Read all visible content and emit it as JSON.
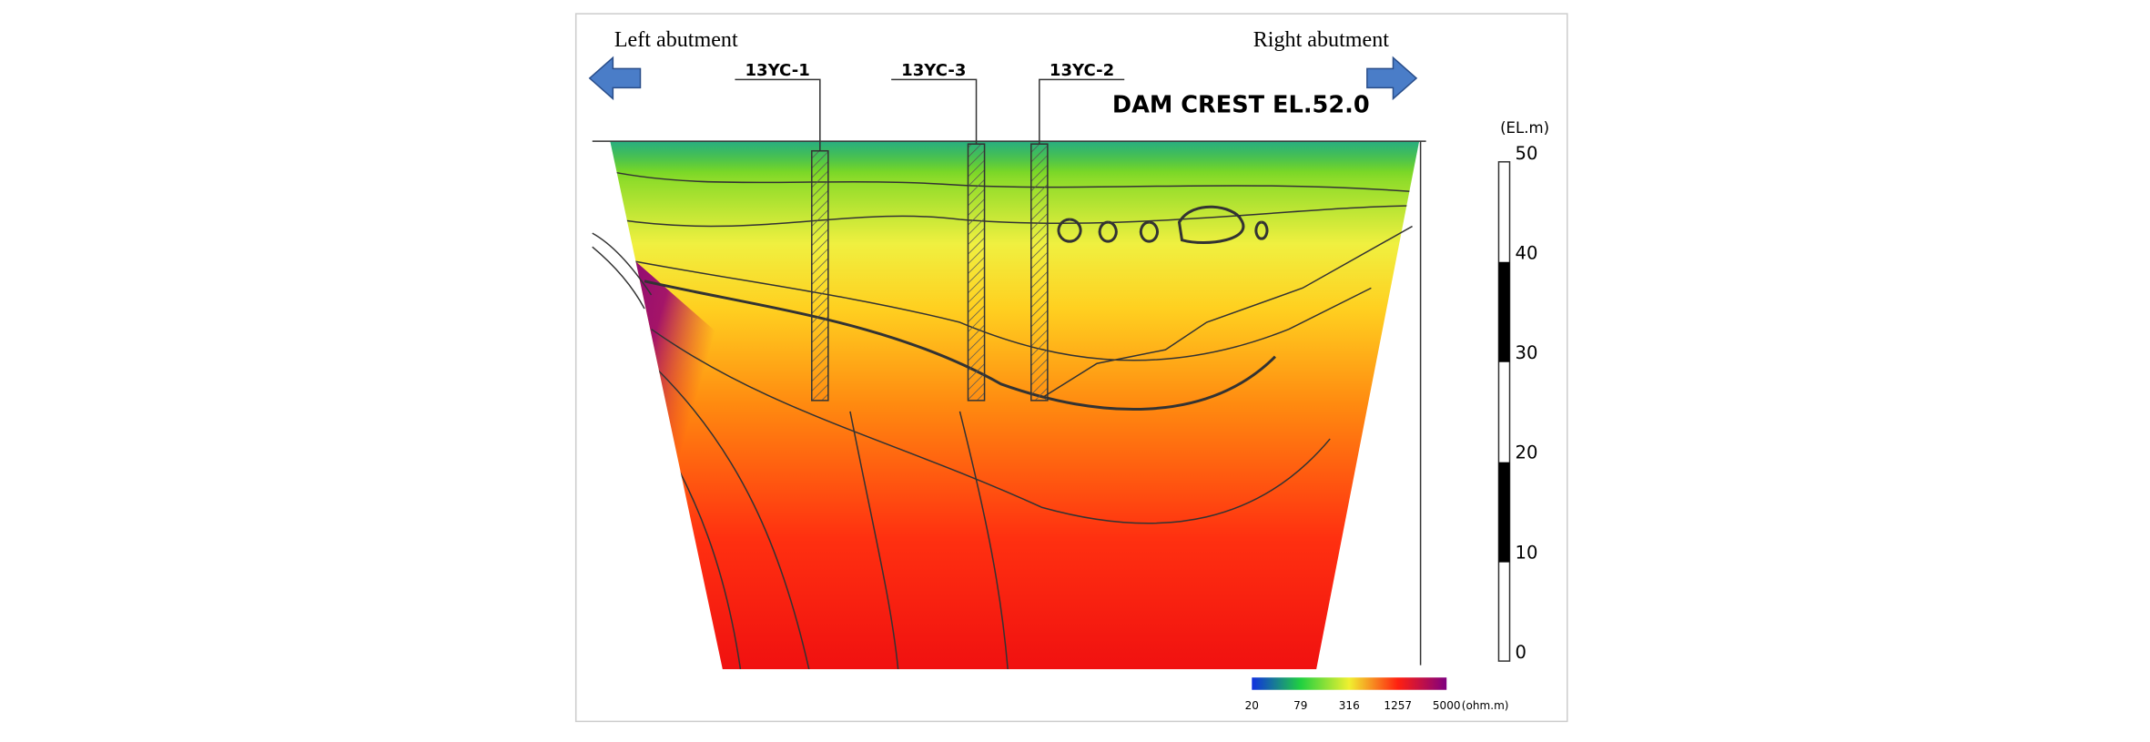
{
  "header": {
    "left_label": "Left abutment",
    "right_label": "Right abutment",
    "crest": "DAM CREST EL.52.0"
  },
  "boreholes": [
    "13YC-1",
    "13YC-3",
    "13YC-2"
  ],
  "elevation_scale": {
    "unit": "(EL.m)",
    "labels": [
      "50",
      "40",
      "30",
      "20",
      "10",
      "0"
    ]
  },
  "colorbar": {
    "labels": [
      "20",
      "79",
      "316",
      "1257",
      "5000"
    ],
    "unit": "(ohm.m)"
  }
}
